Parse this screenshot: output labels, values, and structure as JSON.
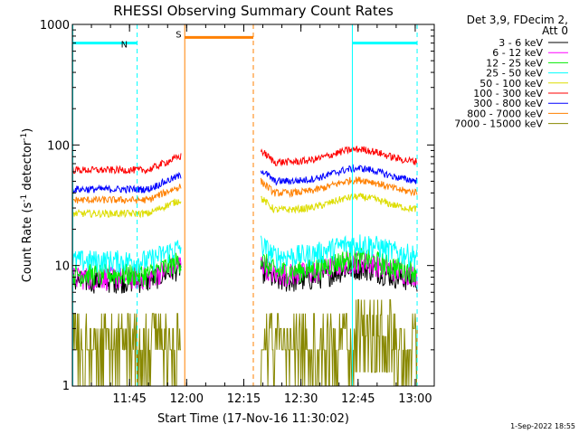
{
  "chart_data": {
    "type": "line",
    "title": "RHESSI Observing Summary Count Rates",
    "xlabel": "Start Time (17-Nov-16 11:30:02)",
    "ylabel_main": "Count Rate (s",
    "ylabel_sup1": "-1",
    "ylabel_mid": " detector",
    "ylabel_sup2": "-1",
    "ylabel_end": ")",
    "yscale": "log",
    "ylim": [
      1,
      1000
    ],
    "xlim_minutes": [
      0,
      95
    ],
    "x_ticks": [
      {
        "m": 15,
        "label": "11:45"
      },
      {
        "m": 30,
        "label": "12:00"
      },
      {
        "m": 45,
        "label": "12:15"
      },
      {
        "m": 60,
        "label": "12:30"
      },
      {
        "m": 75,
        "label": "12:45"
      },
      {
        "m": 90,
        "label": "13:00"
      }
    ],
    "y_ticks": [
      {
        "v": 1,
        "label": "1"
      },
      {
        "v": 10,
        "label": "10"
      },
      {
        "v": 100,
        "label": "100"
      },
      {
        "v": 1000,
        "label": "1000"
      }
    ],
    "legend_header": [
      "Det 3,9, FDecim 2,",
      "Att 0"
    ],
    "series": [
      {
        "name": "3 - 6 keV",
        "color": "#000000",
        "levels": [
          7.5,
          7.5
        ]
      },
      {
        "name": "6 - 12 keV",
        "color": "#ff00ff",
        "levels": [
          8,
          8.5
        ]
      },
      {
        "name": "12 - 25 keV",
        "color": "#00ee00",
        "levels": [
          8.5,
          9
        ]
      },
      {
        "name": "25 - 50 keV",
        "color": "#00ffff",
        "levels": [
          11,
          12
        ]
      },
      {
        "name": "50 - 100 keV",
        "color": "#dddd00",
        "levels": [
          27,
          29
        ]
      },
      {
        "name": "100 - 300 keV",
        "color": "#ff0000",
        "levels": [
          62,
          72
        ]
      },
      {
        "name": "300 - 800 keV",
        "color": "#0000ff",
        "levels": [
          43,
          50
        ]
      },
      {
        "name": "800 - 7000 keV",
        "color": "#ff8000",
        "levels": [
          35,
          40
        ]
      },
      {
        "name": "7000 - 15000 keV",
        "color": "#888800",
        "levels": [
          2,
          2
        ]
      }
    ],
    "data_segments": [
      {
        "start": 0,
        "end": 28.5
      },
      {
        "start": 49.5,
        "end": 90.5
      }
    ],
    "flags": [
      {
        "label": "N",
        "start": 0,
        "end": 17,
        "y": 700,
        "color": "#00ffff"
      },
      {
        "label": "S",
        "start": 29.5,
        "end": 47.5,
        "y": 780,
        "color": "#ff8000"
      },
      {
        "label": "",
        "start": 73.5,
        "end": 90.5,
        "y": 700,
        "color": "#00ffff"
      }
    ],
    "annotation": "1-Sep-2022 18:55"
  }
}
